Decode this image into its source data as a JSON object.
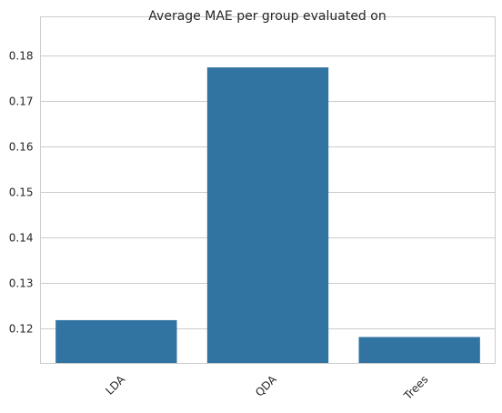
{
  "chart_data": {
    "type": "bar",
    "title": "Average MAE per group evaluated on",
    "xlabel": "",
    "ylabel": "",
    "categories": [
      "LDA",
      "QDA",
      "Trees"
    ],
    "values": [
      0.1219,
      0.1774,
      0.1182
    ],
    "ylim": [
      0.1124,
      0.1864
    ],
    "yticks": [
      0.12,
      0.13,
      0.14,
      0.15,
      0.16,
      0.17,
      0.18
    ],
    "ytick_labels": [
      "0.12",
      "0.13",
      "0.14",
      "0.15",
      "0.16",
      "0.17",
      "0.18"
    ],
    "grid": true,
    "bar_color": "#3274a1",
    "grid_color": "#cccccc"
  }
}
